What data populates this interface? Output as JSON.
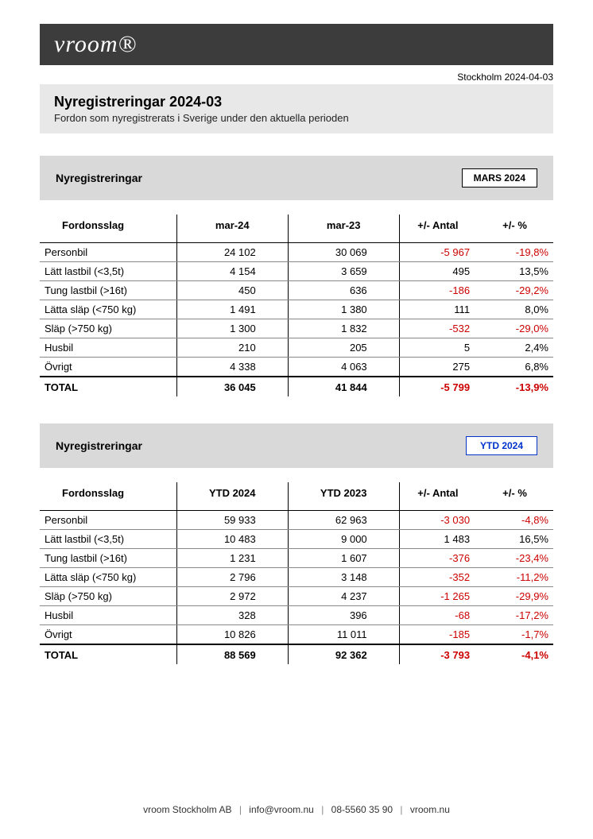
{
  "logo_text": "vroom®",
  "location_date": "Stockholm 2024-04-03",
  "title": "Nyregistreringar 2024-03",
  "subtitle": "Fordon som nyregistrerats i Sverige under den aktuella perioden",
  "section1": {
    "heading": "Nyregistreringar",
    "badge": "MARS 2024",
    "badge_color": "black",
    "columns": {
      "cat": "Fordonsslag",
      "c1": "mar-24",
      "c2": "mar-23",
      "d": "+/- Antal",
      "p": "+/- %"
    },
    "rows": [
      {
        "cat": "Personbil",
        "c1": "24 102",
        "c2": "30 069",
        "d": "-5 967",
        "p": "-19,8%",
        "neg": true
      },
      {
        "cat": "Lätt lastbil (<3,5t)",
        "c1": "4 154",
        "c2": "3 659",
        "d": "495",
        "p": "13,5%",
        "neg": false
      },
      {
        "cat": "Tung lastbil (>16t)",
        "c1": "450",
        "c2": "636",
        "d": "-186",
        "p": "-29,2%",
        "neg": true
      },
      {
        "cat": "Lätta släp (<750 kg)",
        "c1": "1 491",
        "c2": "1 380",
        "d": "111",
        "p": "8,0%",
        "neg": false
      },
      {
        "cat": "Släp (>750 kg)",
        "c1": "1 300",
        "c2": "1 832",
        "d": "-532",
        "p": "-29,0%",
        "neg": true
      },
      {
        "cat": "Husbil",
        "c1": "210",
        "c2": "205",
        "d": "5",
        "p": "2,4%",
        "neg": false
      },
      {
        "cat": "Övrigt",
        "c1": "4 338",
        "c2": "4 063",
        "d": "275",
        "p": "6,8%",
        "neg": false
      }
    ],
    "total": {
      "cat": "TOTAL",
      "c1": "36 045",
      "c2": "41 844",
      "d": "-5 799",
      "p": "-13,9%",
      "neg": true
    }
  },
  "section2": {
    "heading": "Nyregistreringar",
    "badge": "YTD 2024",
    "badge_color": "blue",
    "columns": {
      "cat": "Fordonsslag",
      "c1": "YTD 2024",
      "c2": "YTD 2023",
      "d": "+/- Antal",
      "p": "+/- %"
    },
    "rows": [
      {
        "cat": "Personbil",
        "c1": "59 933",
        "c2": "62 963",
        "d": "-3 030",
        "p": "-4,8%",
        "neg": true
      },
      {
        "cat": "Lätt lastbil (<3,5t)",
        "c1": "10 483",
        "c2": "9 000",
        "d": "1 483",
        "p": "16,5%",
        "neg": false
      },
      {
        "cat": "Tung lastbil (>16t)",
        "c1": "1 231",
        "c2": "1 607",
        "d": "-376",
        "p": "-23,4%",
        "neg": true
      },
      {
        "cat": "Lätta släp (<750 kg)",
        "c1": "2 796",
        "c2": "3 148",
        "d": "-352",
        "p": "-11,2%",
        "neg": true
      },
      {
        "cat": "Släp (>750 kg)",
        "c1": "2 972",
        "c2": "4 237",
        "d": "-1 265",
        "p": "-29,9%",
        "neg": true
      },
      {
        "cat": "Husbil",
        "c1": "328",
        "c2": "396",
        "d": "-68",
        "p": "-17,2%",
        "neg": true
      },
      {
        "cat": "Övrigt",
        "c1": "10 826",
        "c2": "11 011",
        "d": "-185",
        "p": "-1,7%",
        "neg": true
      }
    ],
    "total": {
      "cat": "TOTAL",
      "c1": "88 569",
      "c2": "92 362",
      "d": "-3 793",
      "p": "-4,1%",
      "neg": true
    }
  },
  "footer": {
    "company": "vroom Stockholm AB",
    "email": "info@vroom.nu",
    "phone": "08-5560 35 90",
    "site": "vroom.nu"
  },
  "colors": {
    "header_bg": "#3c3c3c",
    "title_bg": "#e8e8e8",
    "section_bg": "#d9d9d9",
    "negative": "#cc0000",
    "badge_blue": "#0033cc"
  }
}
